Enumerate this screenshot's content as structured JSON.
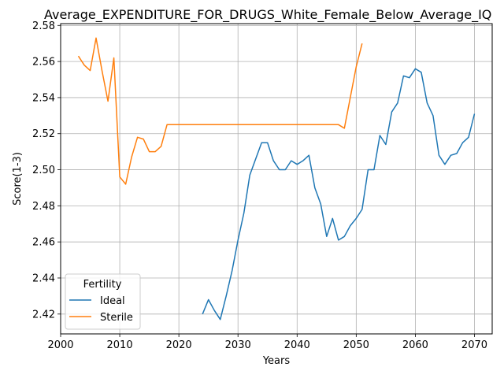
{
  "chart_data": {
    "type": "line",
    "title": "Average_EXPENDITURE_FOR_DRUGS_White_Female_Below_Average_IQ",
    "xlabel": "Years",
    "ylabel": "Score(1-3)",
    "xlim": [
      2000,
      2073
    ],
    "ylim": [
      2.409,
      2.581
    ],
    "xticks": [
      2000,
      2010,
      2020,
      2030,
      2040,
      2050,
      2060,
      2070
    ],
    "yticks": [
      2.42,
      2.44,
      2.46,
      2.48,
      2.5,
      2.52,
      2.54,
      2.56,
      2.58
    ],
    "grid": true,
    "legend": {
      "title": "Fertility",
      "placement": "lower-left"
    },
    "series": [
      {
        "name": "Ideal",
        "color": "#1f77b4",
        "x": [
          2024,
          2025,
          2026,
          2027,
          2028,
          2029,
          2030,
          2031,
          2032,
          2033,
          2034,
          2035,
          2036,
          2037,
          2038,
          2039,
          2040,
          2041,
          2042,
          2043,
          2044,
          2045,
          2046,
          2047,
          2048,
          2049,
          2050,
          2051,
          2052,
          2053,
          2054,
          2055,
          2056,
          2057,
          2058,
          2059,
          2060,
          2061,
          2062,
          2063,
          2064,
          2065,
          2066,
          2067,
          2068,
          2069,
          2070
        ],
        "y": [
          2.42,
          2.428,
          2.422,
          2.417,
          2.43,
          2.444,
          2.461,
          2.476,
          2.497,
          2.506,
          2.515,
          2.515,
          2.505,
          2.5,
          2.5,
          2.505,
          2.503,
          2.505,
          2.508,
          2.49,
          2.481,
          2.463,
          2.473,
          2.461,
          2.463,
          2.469,
          2.473,
          2.478,
          2.5,
          2.5,
          2.519,
          2.514,
          2.532,
          2.537,
          2.552,
          2.551,
          2.556,
          2.554,
          2.537,
          2.53,
          2.508,
          2.503,
          2.508,
          2.509,
          2.515,
          2.518,
          2.531
        ]
      },
      {
        "name": "Sterile",
        "color": "#ff7f0e",
        "x": [
          2003,
          2004,
          2005,
          2006,
          2007,
          2008,
          2009,
          2010,
          2011,
          2012,
          2013,
          2014,
          2015,
          2016,
          2017,
          2018,
          2019,
          2020,
          2021,
          2022,
          2023,
          2024,
          2025,
          2026,
          2027,
          2028,
          2029,
          2030,
          2031,
          2032,
          2033,
          2034,
          2035,
          2036,
          2037,
          2038,
          2039,
          2040,
          2041,
          2042,
          2043,
          2044,
          2045,
          2046,
          2047,
          2048,
          2049,
          2050,
          2051
        ],
        "y": [
          2.563,
          2.558,
          2.555,
          2.573,
          2.555,
          2.538,
          2.562,
          2.496,
          2.492,
          2.507,
          2.518,
          2.517,
          2.51,
          2.51,
          2.513,
          2.525,
          2.525,
          2.525,
          2.525,
          2.525,
          2.525,
          2.525,
          2.525,
          2.525,
          2.525,
          2.525,
          2.525,
          2.525,
          2.525,
          2.525,
          2.525,
          2.525,
          2.525,
          2.525,
          2.525,
          2.525,
          2.525,
          2.525,
          2.525,
          2.525,
          2.525,
          2.525,
          2.525,
          2.525,
          2.525,
          2.523,
          2.54,
          2.557,
          2.57
        ]
      }
    ]
  }
}
